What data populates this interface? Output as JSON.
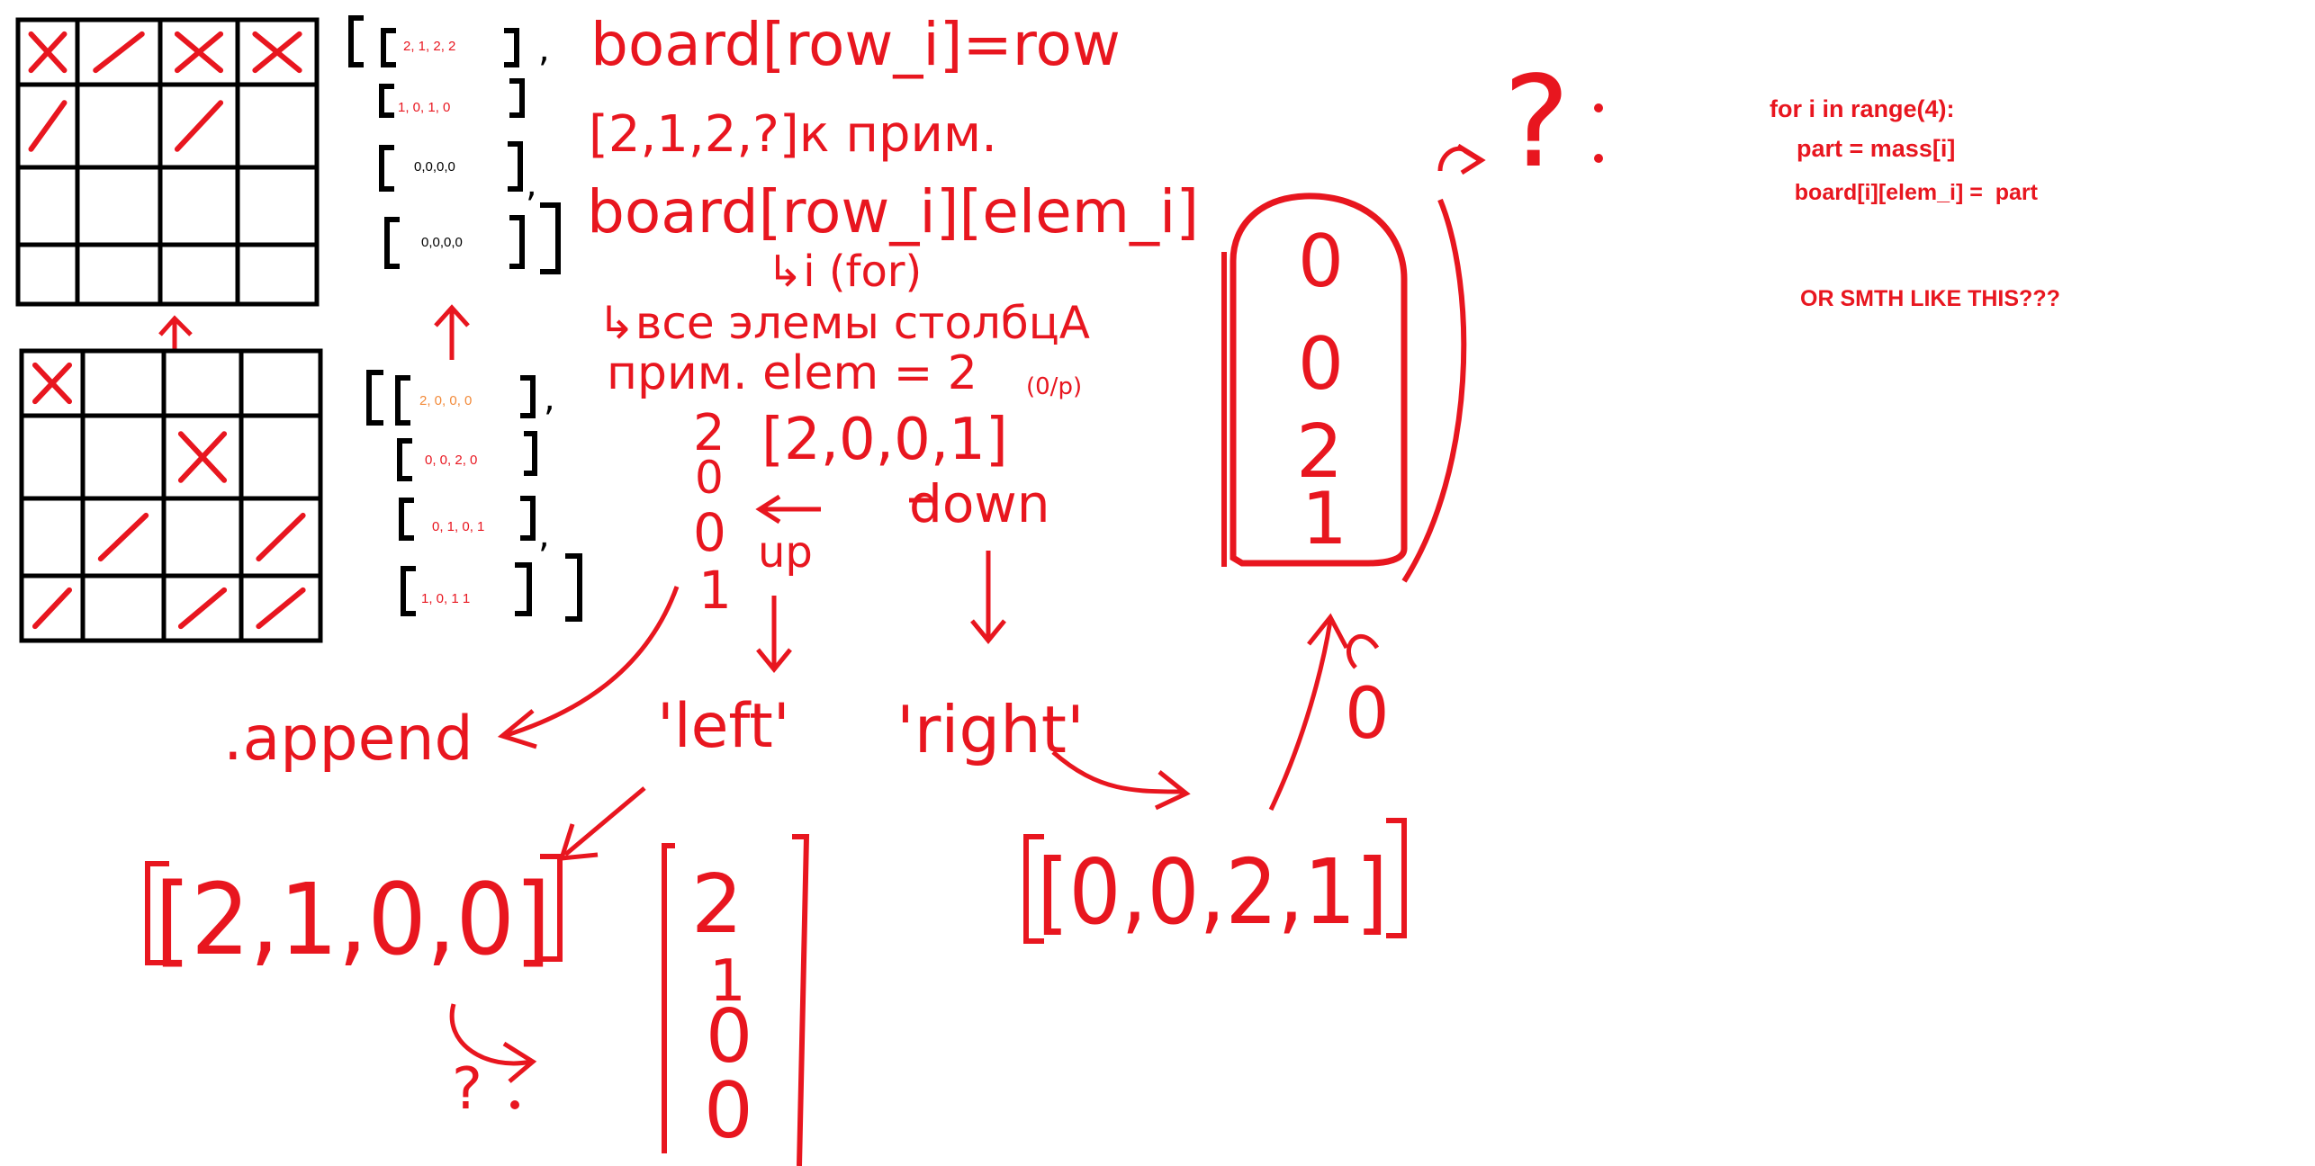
{
  "colors": {
    "ink": "#e8161f",
    "black": "#000000",
    "orange": "#f28a3a",
    "bg": "#ffffff"
  },
  "top_grid": {
    "cells": [
      [
        "X",
        "/",
        "X",
        "X"
      ],
      [
        "/",
        "",
        "/",
        ""
      ],
      [
        "",
        "",
        "",
        ""
      ],
      [
        "",
        "",
        "",
        ""
      ]
    ]
  },
  "bottom_grid": {
    "cells": [
      [
        "X",
        "",
        "",
        ""
      ],
      [
        "",
        "",
        "X",
        ""
      ],
      [
        "",
        "/",
        "",
        "/"
      ],
      [
        "/",
        "",
        "/",
        "/"
      ]
    ]
  },
  "top_matrix_rows": [
    "2, 1, 2, 2",
    "1, 0, 1, 0",
    "0,0,0,0",
    "0,0,0,0"
  ],
  "bottom_matrix_rows": [
    "2, 0, 0, 0",
    "0, 0, 2, 0",
    "0, 1, 0, 1",
    "1, 0, 1 1"
  ],
  "notes": {
    "line1": "board[row_i]=row",
    "line2": "[2,1,2,?]к прим.",
    "line3": "board[row_i][elem_i]",
    "line4": "↳i (for)",
    "line5": "↳все элемы столбцА",
    "line6": "прим. elem = 2",
    "line6b": "(0/p)",
    "column_list": "[2,0,0,1]",
    "column_digits": [
      "2",
      "0",
      "0",
      "1"
    ],
    "up": "up",
    "down": "down",
    "append": ".append",
    "left": "'left'",
    "right": "'right'",
    "left_result": "[2,1,0,0]",
    "right_result": "[0,0,2,1]",
    "left_column": [
      "2",
      "1",
      "0",
      "0"
    ],
    "right_column": [
      "0",
      "0",
      "2",
      "1"
    ],
    "question_small": "?",
    "question_big": "?",
    "loop_symbol": "0"
  },
  "code": {
    "line1": "for i in range(4):",
    "line2": "    part = mass[i]",
    "line3": "    board[i][elem_i] =  part",
    "line4": "OR SMTH LIKE THIS???"
  }
}
